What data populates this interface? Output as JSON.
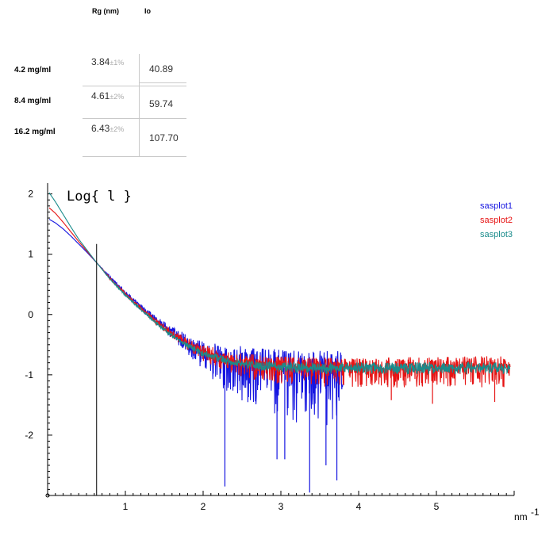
{
  "table": {
    "headers": {
      "rg": "Rg (nm)",
      "io": "Io"
    },
    "rows": [
      {
        "label": "4.2 mg/ml",
        "rg": "3.84",
        "rg_err": "±1%",
        "io": "40.89"
      },
      {
        "label": "8.4 mg/ml",
        "rg": "4.61",
        "rg_err": "±2%",
        "io": "59.74"
      },
      {
        "label": "16.2 mg/ml",
        "rg": "6.43",
        "rg_err": "±2%",
        "io": "107.70"
      }
    ]
  },
  "chart_data": {
    "type": "line",
    "title": "Log{ l }",
    "x_unit": "nm",
    "x_unit_sup": "-1",
    "xlim": [
      0.0,
      6.0
    ],
    "ylim": [
      -3.0,
      2.1
    ],
    "x_ticks": [
      "1",
      "2",
      "3",
      "4",
      "5"
    ],
    "x_tick_values": [
      1,
      2,
      3,
      4,
      5
    ],
    "y_ticks": [
      "2",
      "1",
      "0",
      "-1",
      "-2"
    ],
    "y_tick_values": [
      2,
      1,
      0,
      -1,
      -2
    ],
    "marker_line_x": 0.63,
    "grid": false,
    "legend_position": "top-right",
    "series": [
      {
        "name": "sasplot1",
        "color": "#1515e0",
        "x": [
          0.02,
          0.1,
          0.2,
          0.3,
          0.4,
          0.5,
          0.63,
          0.8,
          1.0,
          1.2,
          1.4,
          1.6,
          1.8,
          2.0,
          2.2,
          2.4,
          2.6,
          2.8,
          3.0,
          3.2,
          3.4,
          3.6,
          3.8
        ],
        "y": [
          1.58,
          1.52,
          1.42,
          1.3,
          1.17,
          1.04,
          0.86,
          0.62,
          0.36,
          0.12,
          -0.1,
          -0.3,
          -0.48,
          -0.63,
          -0.73,
          -0.79,
          -0.83,
          -0.86,
          -0.88,
          -0.89,
          -0.9,
          -0.9,
          -0.9
        ],
        "noise_min": [
          0,
          0,
          0,
          0,
          0,
          0,
          0,
          0.02,
          0.04,
          0.05,
          0.07,
          0.1,
          0.18,
          0.32,
          0.45,
          0.6,
          0.7,
          0.8,
          0.85,
          0.9,
          0.95,
          0.95,
          0.95
        ],
        "noise_max": [
          0,
          0,
          0,
          0,
          0,
          0,
          0,
          0.02,
          0.04,
          0.05,
          0.07,
          0.1,
          0.15,
          0.18,
          0.25,
          0.28,
          0.3,
          0.3,
          0.3,
          0.3,
          0.3,
          0.3,
          0.3
        ],
        "spikes": [
          [
            2.28,
            -2.85
          ],
          [
            2.95,
            -2.4
          ],
          [
            3.05,
            -2.4
          ],
          [
            3.37,
            -2.95
          ],
          [
            3.58,
            -2.5
          ],
          [
            3.72,
            -2.75
          ]
        ]
      },
      {
        "name": "sasplot2",
        "color": "#e61414",
        "x": [
          0.02,
          0.1,
          0.2,
          0.3,
          0.4,
          0.5,
          0.63,
          0.8,
          1.0,
          1.2,
          1.4,
          1.6,
          1.8,
          2.0,
          2.4,
          2.8,
          3.2,
          3.6,
          4.0,
          4.5,
          5.0,
          5.5,
          5.95
        ],
        "y": [
          1.77,
          1.68,
          1.53,
          1.37,
          1.21,
          1.06,
          0.86,
          0.6,
          0.34,
          0.1,
          -0.12,
          -0.32,
          -0.49,
          -0.63,
          -0.78,
          -0.84,
          -0.86,
          -0.88,
          -0.89,
          -0.88,
          -0.87,
          -0.87,
          -0.87
        ],
        "noise_min": [
          0,
          0,
          0,
          0,
          0,
          0,
          0,
          0.02,
          0.03,
          0.04,
          0.05,
          0.07,
          0.1,
          0.15,
          0.22,
          0.3,
          0.3,
          0.32,
          0.33,
          0.33,
          0.33,
          0.35,
          0.35
        ],
        "noise_max": [
          0,
          0,
          0,
          0,
          0,
          0,
          0,
          0.02,
          0.03,
          0.04,
          0.05,
          0.07,
          0.1,
          0.13,
          0.15,
          0.16,
          0.17,
          0.17,
          0.17,
          0.17,
          0.17,
          0.18,
          0.18
        ],
        "spikes": [
          [
            4.42,
            -1.42
          ],
          [
            4.95,
            -1.48
          ],
          [
            5.75,
            -1.45
          ]
        ]
      },
      {
        "name": "sasplot3",
        "color": "#1a8c8c",
        "x": [
          0.02,
          0.1,
          0.2,
          0.3,
          0.4,
          0.5,
          0.63,
          0.8,
          1.0,
          1.2,
          1.4,
          1.6,
          1.8,
          2.0,
          2.4,
          2.8,
          3.2,
          3.6,
          4.0,
          4.5,
          5.0,
          5.5,
          5.95
        ],
        "y": [
          2.02,
          1.87,
          1.66,
          1.45,
          1.25,
          1.08,
          0.86,
          0.59,
          0.32,
          0.08,
          -0.15,
          -0.35,
          -0.52,
          -0.65,
          -0.8,
          -0.86,
          -0.88,
          -0.89,
          -0.89,
          -0.89,
          -0.89,
          -0.89,
          -0.89
        ],
        "noise_min": [
          0,
          0,
          0,
          0,
          0,
          0,
          0,
          0.01,
          0.02,
          0.02,
          0.03,
          0.04,
          0.05,
          0.06,
          0.07,
          0.08,
          0.09,
          0.1,
          0.1,
          0.1,
          0.1,
          0.1,
          0.1
        ],
        "noise_max": [
          0,
          0,
          0,
          0,
          0,
          0,
          0,
          0.01,
          0.02,
          0.02,
          0.03,
          0.04,
          0.05,
          0.06,
          0.07,
          0.08,
          0.09,
          0.1,
          0.1,
          0.1,
          0.1,
          0.1,
          0.1
        ],
        "spikes": []
      }
    ]
  }
}
